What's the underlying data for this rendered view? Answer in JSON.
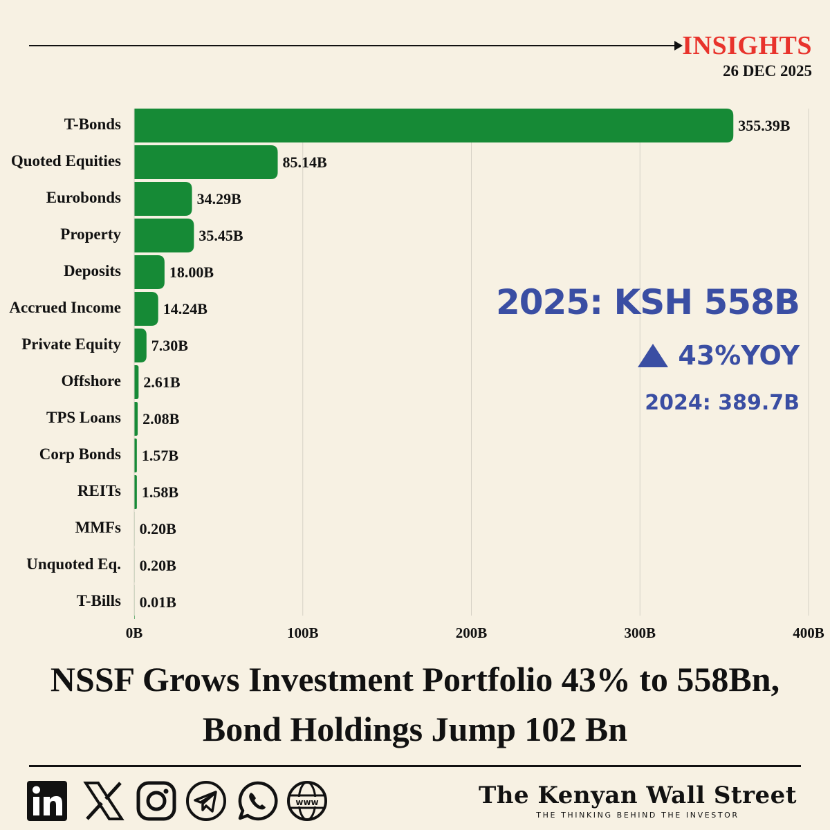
{
  "header": {
    "section": "INSIGHTS",
    "date": "26 DEC 2025"
  },
  "chart_data": {
    "type": "bar",
    "orientation": "horizontal",
    "categories": [
      "T-Bonds",
      "Quoted Equities",
      "Eurobonds",
      "Property",
      "Deposits",
      "Accrued Income",
      "Private Equity",
      "Offshore",
      "TPS Loans",
      "Corp Bonds",
      "REITs",
      "MMFs",
      "Unquoted Eq.",
      "T-Bills"
    ],
    "values": [
      355.39,
      85.14,
      34.29,
      35.45,
      18.0,
      14.24,
      7.3,
      2.61,
      2.08,
      1.57,
      1.58,
      0.2,
      0.2,
      0.01
    ],
    "value_labels": [
      "355.39B",
      "85.14B",
      "34.29B",
      "35.45B",
      "18.00B",
      "14.24B",
      "7.30B",
      "2.61B",
      "2.08B",
      "1.57B",
      "1.58B",
      "0.20B",
      "0.20B",
      "0.01B"
    ],
    "xlim": [
      0,
      400
    ],
    "xticks": [
      0,
      100,
      200,
      300,
      400
    ],
    "xtick_labels": [
      "0B",
      "100B",
      "200B",
      "300B",
      "400B"
    ],
    "unit": "KSh billions",
    "bar_color": "#168a36",
    "grid": true
  },
  "stats": {
    "total": "2025: KSH 558B",
    "yoy": "43%YOY",
    "previous": "2024: 389.7B"
  },
  "headline": {
    "line1": "NSSF Grows Investment Portfolio 43% to 558Bn,",
    "line2": "Bond Holdings Jump 102 Bn"
  },
  "footer": {
    "social_icons": [
      "linkedin-icon",
      "x-icon",
      "instagram-icon",
      "telegram-icon",
      "whatsapp-icon",
      "website-icon"
    ],
    "website_text": "www",
    "brand": "The Kenyan Wall Street",
    "tagline": "THE THINKING BEHIND THE INVESTOR"
  },
  "colors": {
    "accent": "#e8332c",
    "stat": "#3a4ea3",
    "bar": "#168a36",
    "background": "#f7f1e3"
  }
}
